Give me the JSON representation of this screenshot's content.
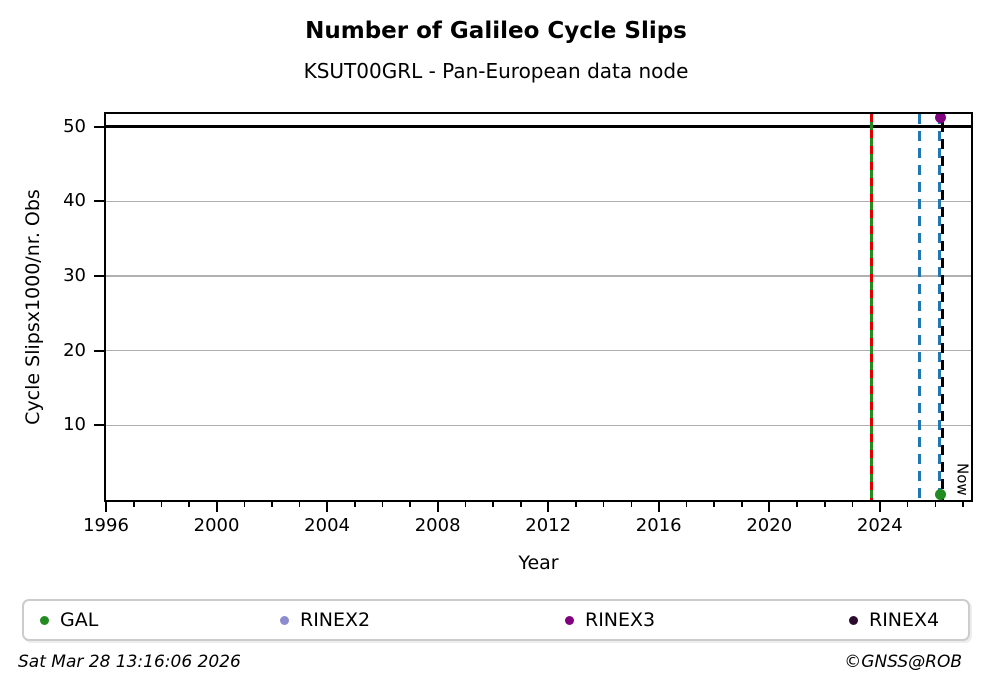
{
  "header": {
    "title": "Number of Galileo Cycle Slips",
    "subtitle": "KSUT00GRL - Pan-European data node"
  },
  "chart_data": {
    "type": "scatter",
    "title": "Number of Galileo Cycle Slips",
    "subtitle": "KSUT00GRL - Pan-European data node",
    "xlabel": "Year",
    "ylabel": "Cycle Slipsx1000/nr. Obs",
    "xlim": [
      1996,
      2027.3
    ],
    "ylim": [
      0,
      51.7
    ],
    "xticks_major": [
      1996,
      2000,
      2004,
      2008,
      2012,
      2016,
      2020,
      2024
    ],
    "xtick_minor_step": 1,
    "yticks": [
      10,
      20,
      30,
      40,
      50
    ],
    "grid": {
      "axis": "y",
      "color": "#b0b0b0"
    },
    "hlines": [
      {
        "y": 50,
        "color": "#000000"
      }
    ],
    "vlines": [
      {
        "x": 2023.7,
        "style": "solid-with-dashes",
        "solid_color": "#228B22",
        "dash_color": "#e00000",
        "label": ""
      },
      {
        "x": 2025.45,
        "style": "dashed",
        "dash_color": "#1f77b4",
        "label": ""
      },
      {
        "x": 2026.2,
        "style": "double-dashed",
        "dash_color": "#1f77b4",
        "dash_color2": "#000000",
        "label": "Now"
      }
    ],
    "series": [
      {
        "name": "GAL",
        "color": "#228B22",
        "points": [
          {
            "x": 2026.18,
            "y": 0.7
          }
        ]
      },
      {
        "name": "RINEX2",
        "color": "#8c8cce",
        "points": []
      },
      {
        "name": "RINEX3",
        "color": "#800080",
        "points": [
          {
            "x": 2026.2,
            "y": 51.3
          }
        ]
      },
      {
        "name": "RINEX4",
        "color": "#2d0b30",
        "points": []
      }
    ]
  },
  "footer": {
    "timestamp": "Sat Mar 28 13:16:06 2026",
    "copyright": "©GNSS@ROB"
  }
}
